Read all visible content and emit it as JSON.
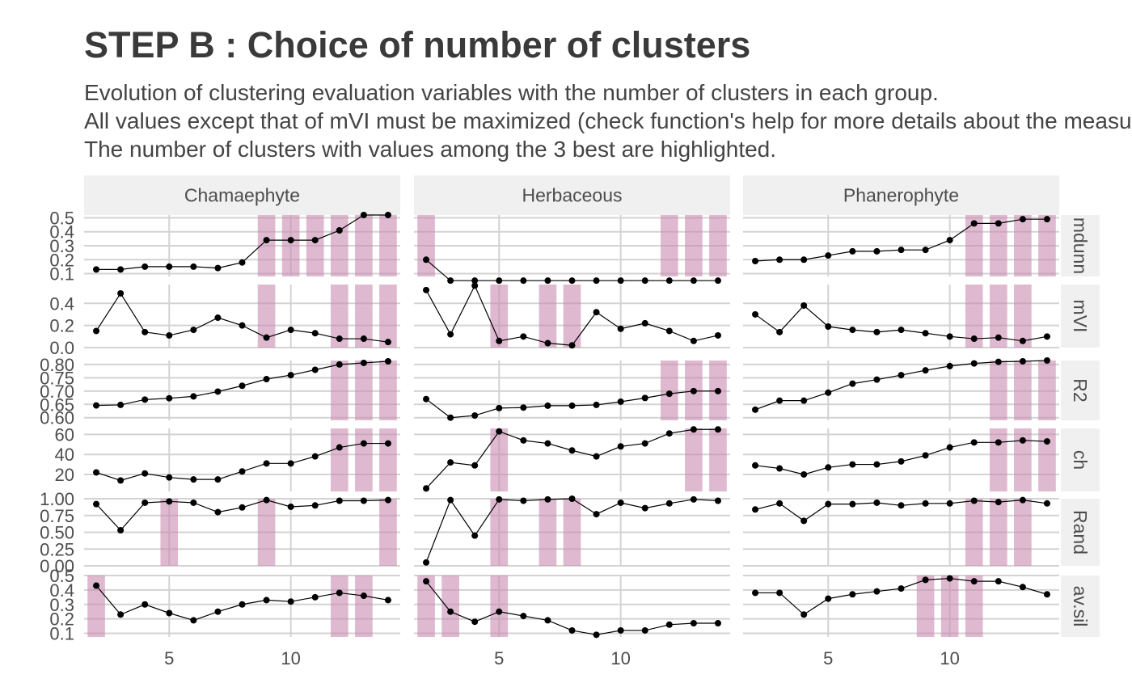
{
  "title": "STEP B : Choice of number of clusters",
  "subtitle": [
    "Evolution of clustering evaluation variables with the number of clusters in each group.",
    "All values except that of mVI must be maximized (check function's help for more details about the measures).",
    "The number of clusters with values among the 3 best are highlighted."
  ],
  "colors": {
    "highlight": "#c98ab1",
    "strip_bg": "#f0f0f0",
    "grid_major": "#d3d3d3",
    "grid_minor": "#ebebeb",
    "point": "#000000",
    "text": "#4d4d4d"
  },
  "chart_data": {
    "type": "line",
    "facets": [
      "Chamaephyte",
      "Herbaceous",
      "Phanerophyte"
    ],
    "metrics": [
      "mdunn",
      "mVI",
      "R2",
      "ch",
      "Rand",
      "av.sil"
    ],
    "x": [
      2,
      3,
      4,
      5,
      6,
      7,
      8,
      9,
      10,
      11,
      12,
      13,
      14
    ],
    "xlim": [
      1.5,
      14.5
    ],
    "xticks": [
      "5",
      "10"
    ],
    "grid": true,
    "panels": {
      "mdunn": {
        "ylim": [
          0.08,
          0.52
        ],
        "yticks": [
          "0.1",
          "0.2",
          "0.3",
          "0.4",
          "0.5"
        ],
        "series": {
          "Chamaephyte": [
            0.13,
            0.13,
            0.15,
            0.15,
            0.15,
            0.14,
            0.18,
            0.34,
            0.34,
            0.34,
            0.41,
            0.52,
            0.52
          ],
          "Herbaceous": [
            0.2,
            0.05,
            0.05,
            0.05,
            0.05,
            0.05,
            0.05,
            0.05,
            0.05,
            0.05,
            0.05,
            0.05,
            0.05
          ],
          "Phanerophyte": [
            0.19,
            0.2,
            0.2,
            0.23,
            0.26,
            0.26,
            0.27,
            0.27,
            0.34,
            0.46,
            0.46,
            0.49,
            0.49
          ]
        },
        "highlights": {
          "Chamaephyte": [
            9,
            10,
            11,
            12,
            13,
            14
          ],
          "Herbaceous": [
            2,
            12,
            13,
            14
          ],
          "Phanerophyte": [
            11,
            12,
            13,
            14
          ]
        }
      },
      "mVI": {
        "ylim": [
          0.0,
          0.57
        ],
        "yticks": [
          "0.0",
          "0.2",
          "0.4"
        ],
        "series": {
          "Chamaephyte": [
            0.15,
            0.49,
            0.14,
            0.11,
            0.16,
            0.27,
            0.2,
            0.09,
            0.16,
            0.13,
            0.08,
            0.08,
            0.05
          ],
          "Herbaceous": [
            0.52,
            0.12,
            0.56,
            0.06,
            0.1,
            0.04,
            0.02,
            0.32,
            0.17,
            0.22,
            0.15,
            0.06,
            0.11
          ],
          "Phanerophyte": [
            0.3,
            0.14,
            0.38,
            0.19,
            0.16,
            0.14,
            0.16,
            0.13,
            0.1,
            0.08,
            0.09,
            0.06,
            0.1
          ]
        },
        "highlights": {
          "Chamaephyte": [
            9,
            12,
            13,
            14
          ],
          "Herbaceous": [
            5,
            7,
            8
          ],
          "Phanerophyte": [
            11,
            12,
            13
          ]
        }
      },
      "R2": {
        "ylim": [
          0.59,
          0.815
        ],
        "yticks": [
          "0.60",
          "0.65",
          "0.70",
          "0.75",
          "0.80"
        ],
        "series": {
          "Chamaephyte": [
            0.646,
            0.648,
            0.668,
            0.673,
            0.68,
            0.698,
            0.72,
            0.745,
            0.76,
            0.78,
            0.8,
            0.806,
            0.812
          ],
          "Herbaceous": [
            0.67,
            0.6,
            0.608,
            0.636,
            0.638,
            0.645,
            0.645,
            0.648,
            0.66,
            0.674,
            0.69,
            0.7,
            0.7
          ],
          "Phanerophyte": [
            0.63,
            0.664,
            0.664,
            0.694,
            0.728,
            0.743,
            0.76,
            0.778,
            0.794,
            0.804,
            0.81,
            0.812,
            0.815
          ]
        },
        "highlights": {
          "Chamaephyte": [
            12,
            13,
            14
          ],
          "Herbaceous": [
            12,
            13,
            14
          ],
          "Phanerophyte": [
            12,
            13,
            14
          ]
        }
      },
      "ch": {
        "ylim": [
          3,
          66
        ],
        "yticks": [
          "20",
          "40",
          "60"
        ],
        "series": {
          "Chamaephyte": [
            22,
            14,
            21,
            17,
            15,
            15,
            23,
            31,
            31,
            38,
            47,
            51,
            51
          ],
          "Herbaceous": [
            6,
            32,
            29,
            63,
            54,
            51,
            44,
            38,
            48,
            51,
            61,
            65,
            65
          ],
          "Phanerophyte": [
            29,
            26,
            20,
            27,
            30,
            30,
            33,
            39,
            47,
            52,
            52,
            54,
            53
          ]
        },
        "highlights": {
          "Chamaephyte": [
            12,
            13,
            14
          ],
          "Herbaceous": [
            5,
            13,
            14
          ],
          "Phanerophyte": [
            12,
            13,
            14
          ]
        }
      },
      "Rand": {
        "ylim": [
          0.0,
          1.0
        ],
        "yticks": [
          "0.00",
          "0.25",
          "0.50",
          "0.75",
          "1.00"
        ],
        "series": {
          "Chamaephyte": [
            0.92,
            0.53,
            0.94,
            0.96,
            0.94,
            0.8,
            0.87,
            0.98,
            0.88,
            0.9,
            0.97,
            0.97,
            0.98
          ],
          "Herbaceous": [
            0.05,
            0.98,
            0.45,
            0.99,
            0.97,
            0.99,
            1.0,
            0.77,
            0.94,
            0.86,
            0.93,
            0.99,
            0.97
          ],
          "Phanerophyte": [
            0.84,
            0.93,
            0.67,
            0.92,
            0.92,
            0.94,
            0.9,
            0.93,
            0.93,
            0.97,
            0.95,
            0.98,
            0.93
          ]
        },
        "highlights": {
          "Chamaephyte": [
            5,
            9,
            14
          ],
          "Herbaceous": [
            5,
            7,
            8
          ],
          "Phanerophyte": [
            11,
            12,
            13
          ]
        }
      },
      "av.sil": {
        "ylim": [
          0.075,
          0.5
        ],
        "yticks": [
          "0.1",
          "0.2",
          "0.3",
          "0.4",
          "0.5"
        ],
        "series": {
          "Chamaephyte": [
            0.43,
            0.23,
            0.3,
            0.24,
            0.19,
            0.25,
            0.3,
            0.33,
            0.32,
            0.35,
            0.38,
            0.36,
            0.33
          ],
          "Herbaceous": [
            0.46,
            0.25,
            0.18,
            0.25,
            0.22,
            0.19,
            0.12,
            0.09,
            0.12,
            0.12,
            0.16,
            0.17,
            0.17
          ],
          "Phanerophyte": [
            0.38,
            0.38,
            0.23,
            0.34,
            0.37,
            0.39,
            0.41,
            0.47,
            0.48,
            0.46,
            0.46,
            0.42,
            0.37
          ]
        },
        "highlights": {
          "Chamaephyte": [
            2,
            12,
            13
          ],
          "Herbaceous": [
            2,
            3,
            5
          ],
          "Phanerophyte": [
            9,
            10,
            11
          ]
        }
      }
    }
  }
}
